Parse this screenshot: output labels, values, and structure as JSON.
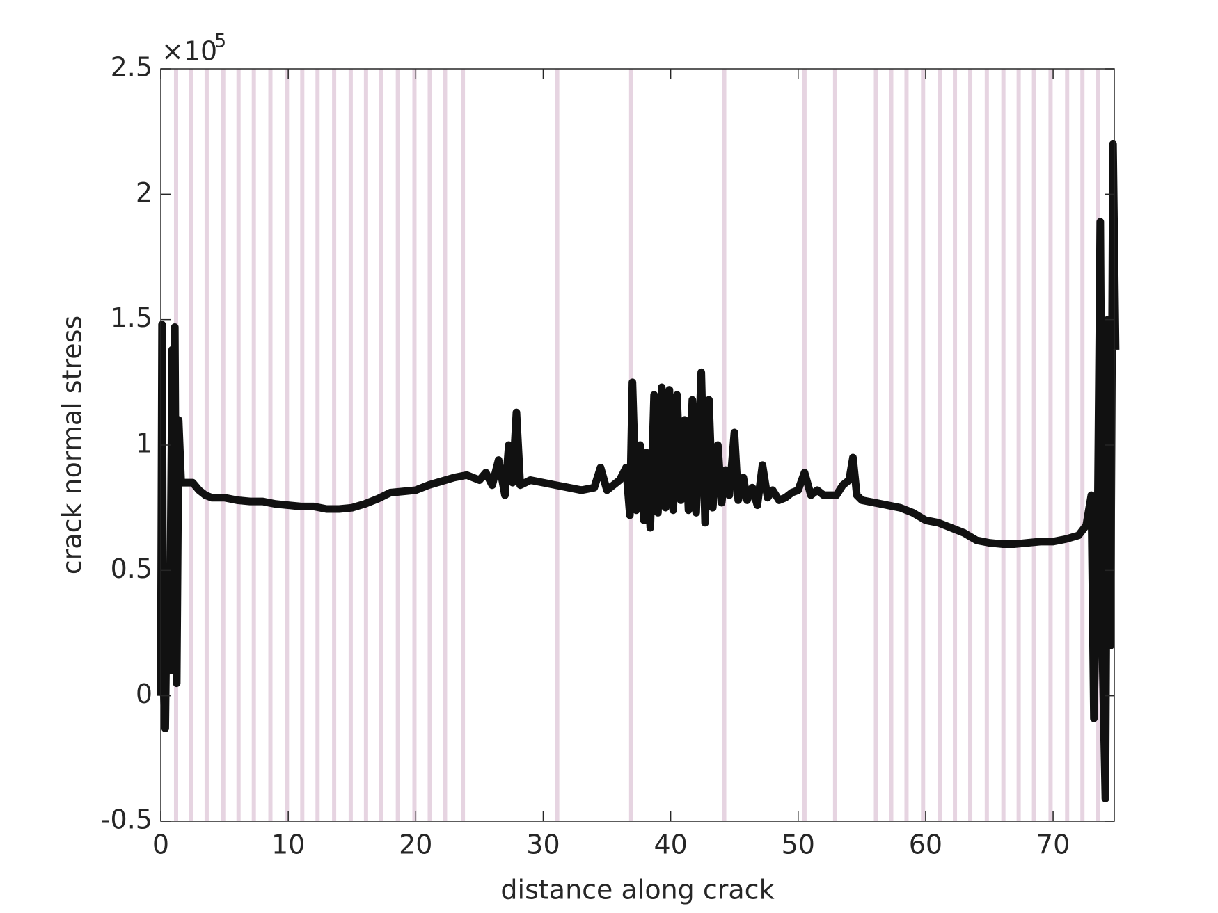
{
  "chart_data": {
    "type": "line",
    "xlabel": "distance along crack",
    "ylabel": "crack normal stress",
    "y_multiplier": "×10",
    "y_multiplier_exponent": "5",
    "xlim": [
      0,
      74.8
    ],
    "ylim": [
      -0.5,
      2.5
    ],
    "xticks": [
      0,
      10,
      20,
      30,
      40,
      50,
      60,
      70
    ],
    "yticks": [
      -0.5,
      0,
      0.5,
      1,
      1.5,
      2,
      2.5
    ],
    "vlines": {
      "color": "#e6d4e1",
      "x": [
        1.2,
        2.4,
        3.6,
        4.9,
        6.1,
        7.3,
        8.6,
        9.9,
        11.1,
        12.3,
        13.6,
        14.9,
        16.1,
        17.3,
        18.6,
        19.9,
        21.1,
        22.3,
        23.7,
        31.1,
        36.9,
        44.2,
        50.5,
        52.9,
        56.1,
        57.3,
        58.5,
        59.8,
        61.1,
        62.3,
        63.5,
        64.8,
        66.1,
        67.3,
        68.5,
        69.8,
        71.1,
        72.3,
        73.5
      ]
    },
    "series": [
      {
        "color": "#111111",
        "x": [
          0,
          0.1,
          0.2,
          0.35,
          0.5,
          0.7,
          0.9,
          1.0,
          1.1,
          1.25,
          1.4,
          1.6,
          2.5,
          3,
          3.5,
          4,
          5,
          6,
          7,
          8,
          9,
          10,
          11,
          12,
          13,
          14,
          15,
          16,
          17,
          18,
          19,
          20,
          21,
          22,
          23,
          24,
          25,
          25.5,
          26,
          26.5,
          27,
          27.3,
          27.6,
          27.9,
          28.2,
          29,
          30,
          31,
          32,
          33,
          34,
          34.5,
          35,
          36,
          36.5,
          36.8,
          37.0,
          37.3,
          37.6,
          37.9,
          38.1,
          38.4,
          38.7,
          39,
          39.3,
          39.6,
          39.9,
          40.2,
          40.5,
          40.8,
          41.1,
          41.4,
          41.7,
          42,
          42.4,
          42.7,
          43,
          43.3,
          43.7,
          44,
          44.3,
          44.6,
          45,
          45.3,
          45.7,
          46,
          46.4,
          46.8,
          47.2,
          47.6,
          48,
          48.5,
          49,
          49.5,
          50,
          50.5,
          51,
          51.5,
          52,
          53,
          53.5,
          54,
          54.3,
          54.6,
          55,
          56,
          57,
          58,
          59,
          60,
          61,
          62,
          63,
          64,
          65,
          66,
          67,
          68,
          69,
          70,
          71,
          72,
          72.6,
          73,
          73.2,
          73.5,
          73.7,
          73.9,
          74.1,
          74.3,
          74.5,
          74.7,
          74.9
        ],
        "values": [
          0,
          1.48,
          0.05,
          -0.13,
          0.5,
          0.1,
          1.38,
          0.1,
          1.47,
          0.05,
          1.1,
          0.85,
          0.85,
          0.82,
          0.8,
          0.79,
          0.79,
          0.78,
          0.775,
          0.775,
          0.765,
          0.76,
          0.755,
          0.755,
          0.745,
          0.745,
          0.75,
          0.765,
          0.785,
          0.81,
          0.815,
          0.82,
          0.84,
          0.855,
          0.87,
          0.88,
          0.86,
          0.89,
          0.84,
          0.94,
          0.8,
          1.0,
          0.85,
          1.13,
          0.84,
          0.86,
          0.85,
          0.84,
          0.83,
          0.82,
          0.83,
          0.91,
          0.82,
          0.86,
          0.91,
          0.72,
          1.25,
          0.74,
          1.0,
          0.7,
          0.97,
          0.67,
          1.2,
          0.73,
          1.23,
          0.75,
          1.22,
          0.74,
          1.2,
          0.78,
          1.1,
          0.74,
          1.18,
          0.73,
          1.29,
          0.69,
          1.18,
          0.75,
          1.0,
          0.77,
          0.9,
          0.8,
          1.05,
          0.78,
          0.87,
          0.78,
          0.83,
          0.76,
          0.92,
          0.79,
          0.82,
          0.78,
          0.79,
          0.81,
          0.82,
          0.89,
          0.8,
          0.82,
          0.8,
          0.8,
          0.84,
          0.86,
          0.95,
          0.8,
          0.78,
          0.77,
          0.76,
          0.75,
          0.73,
          0.7,
          0.69,
          0.67,
          0.65,
          0.62,
          0.61,
          0.605,
          0.605,
          0.61,
          0.615,
          0.615,
          0.625,
          0.64,
          0.68,
          0.8,
          -0.09,
          0.7,
          1.89,
          0.1,
          -0.41,
          1.5,
          0.2,
          2.2,
          1.38
        ]
      }
    ]
  }
}
